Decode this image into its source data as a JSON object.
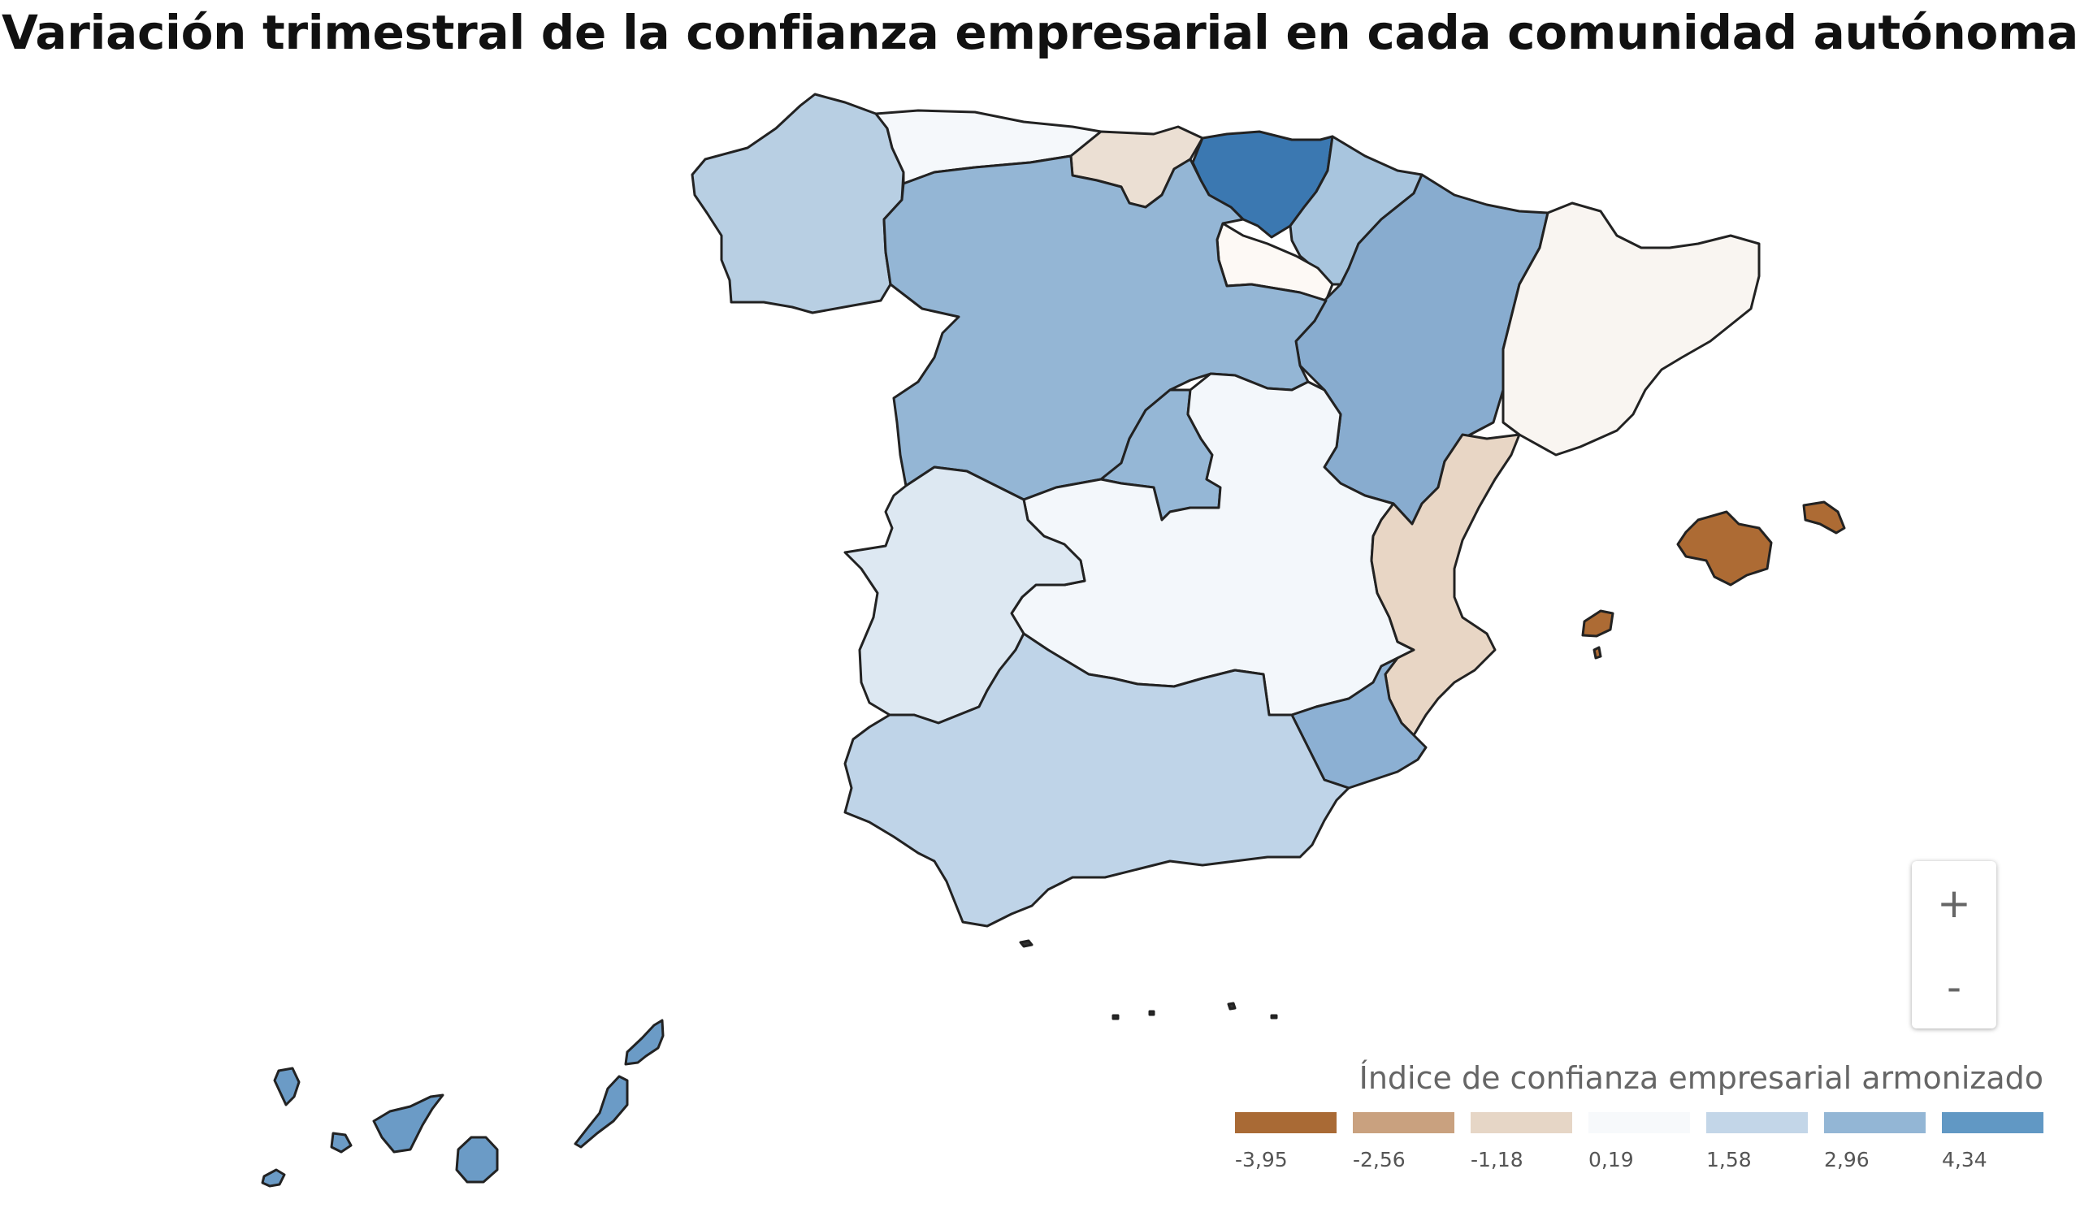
{
  "title": "Variación trimestral de la confianza empresarial en cada comunidad autónoma",
  "zoom": {
    "in_label": "+",
    "out_label": "-"
  },
  "legend": {
    "title": "Índice de confianza empresarial armonizado",
    "stops": [
      {
        "label": "-3,95",
        "color": "#a96a35"
      },
      {
        "label": "-2,56",
        "color": "#c9a17f"
      },
      {
        "label": "-1,18",
        "color": "#e6d6c6"
      },
      {
        "label": "0,19",
        "color": "#f7f9fb"
      },
      {
        "label": "1,58",
        "color": "#c3d6e8"
      },
      {
        "label": "2,96",
        "color": "#93b6d5"
      },
      {
        "label": "4,34",
        "color": "#6198c4"
      }
    ]
  },
  "region_colors": {
    "galicia": "#b8cfe3",
    "asturias": "#f5f8fb",
    "cantabria": "#ebdfd3",
    "pais_vasco": "#3b78b1",
    "navarra": "#a8c5de",
    "la_rioja": "#fdf9f5",
    "aragon": "#88accf",
    "cataluna": "#f9f5f1",
    "castilla_y_leon": "#94b6d5",
    "madrid": "#95b7d6",
    "castilla_la_mancha": "#f3f7fb",
    "extremadura": "#dde8f2",
    "comunidad_valenciana": "#e8d6c5",
    "murcia": "#8cb0d3",
    "andalucia": "#bfd4e8",
    "baleares": "#ad6b34",
    "canarias": "#6b9bc6",
    "ceuta_melilla": "#333333"
  }
}
